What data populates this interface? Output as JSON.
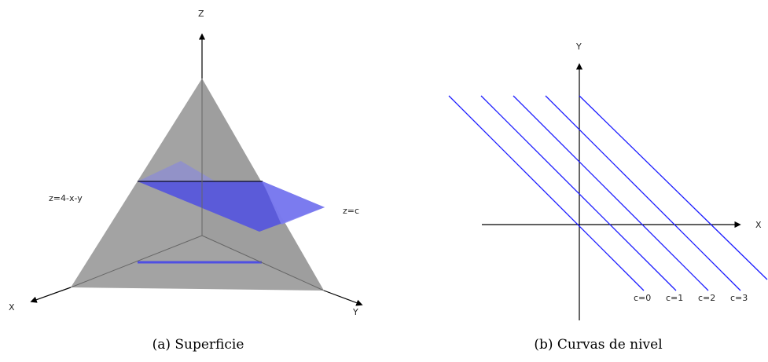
{
  "left_panel": {
    "axis_z": "Z",
    "axis_x": "X",
    "axis_y": "Y",
    "surface_label": "z=4-x-y",
    "plane_label": "z=c",
    "caption": "(a) Superficie"
  },
  "right_panel": {
    "axis_x": "X",
    "axis_y": "Y",
    "caption": "(b) Curvas de nivel",
    "level_curves": [
      {
        "label": "c=0",
        "c": 0
      },
      {
        "label": "c=1",
        "c": 1
      },
      {
        "label": "c=2",
        "c": 2
      },
      {
        "label": "c=3",
        "c": 3
      }
    ]
  },
  "colors": {
    "surface": "#a3a3a3",
    "plane": "#5a5ae8",
    "level_curve": "#1a1aff",
    "axis": "#000000"
  }
}
